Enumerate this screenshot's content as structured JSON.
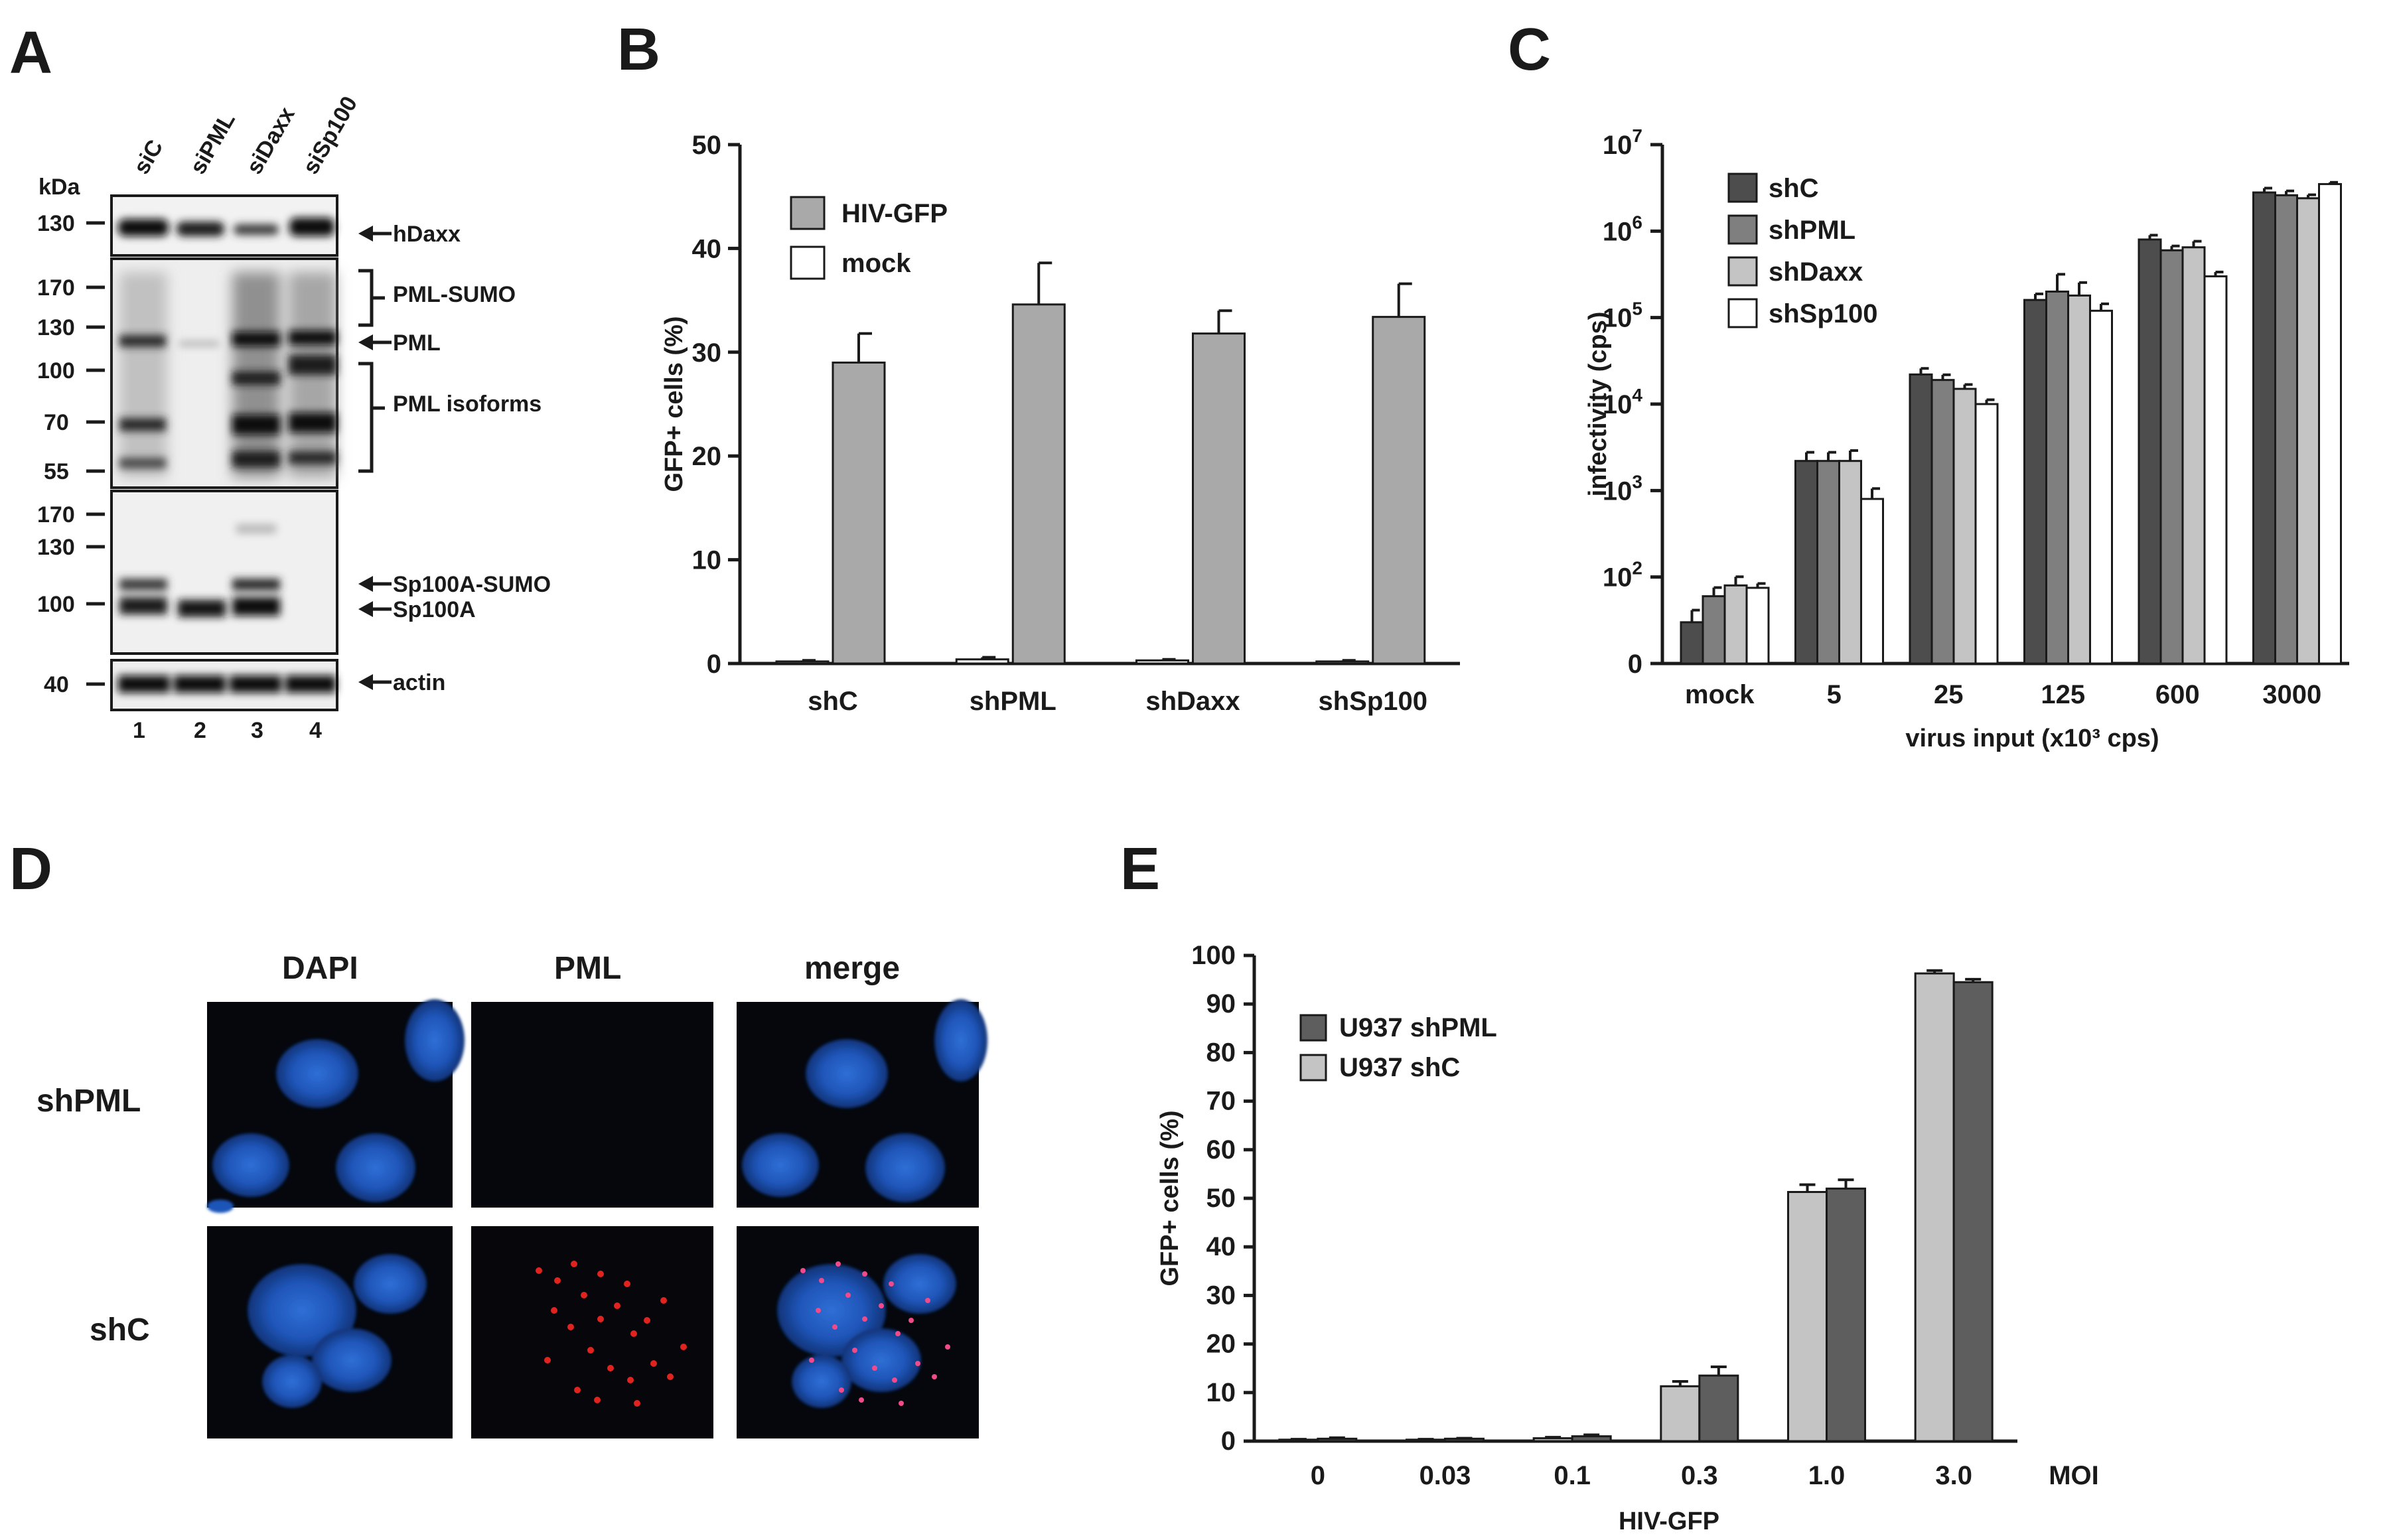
{
  "panels": {
    "A": {
      "letter": "A",
      "kda_label": "kDa",
      "lanes": [
        "siC",
        "siPML",
        "siDaxx",
        "siSp100"
      ],
      "lane_numbers": [
        "1",
        "2",
        "3",
        "4"
      ],
      "marker_labels": [
        "130",
        "170",
        "130",
        "100",
        "70",
        "55",
        "170",
        "130",
        "100",
        "40"
      ],
      "band_labels": [
        "hDaxx",
        "PML-SUMO",
        "PML",
        "PML isoforms",
        "Sp100A-SUMO",
        "Sp100A",
        "actin"
      ]
    },
    "B": {
      "letter": "B"
    },
    "C": {
      "letter": "C"
    },
    "D": {
      "letter": "D",
      "columns": [
        "DAPI",
        "PML",
        "merge"
      ],
      "rows": [
        "shPML",
        "shC"
      ]
    },
    "E": {
      "letter": "E"
    }
  },
  "chart_data": [
    {
      "panel": "B",
      "type": "bar",
      "categories": [
        "shC",
        "shPML",
        "shDaxx",
        "shSp100"
      ],
      "series": [
        {
          "name": "HIV-GFP",
          "values": [
            29.0,
            34.6,
            31.8,
            33.4
          ],
          "errors": [
            2.8,
            4.0,
            2.2,
            3.2
          ],
          "color": "#a9a9a9"
        },
        {
          "name": "mock",
          "values": [
            0.2,
            0.4,
            0.3,
            0.2
          ],
          "errors": [
            0.1,
            0.2,
            0.1,
            0.1
          ],
          "color": "#ffffff"
        }
      ],
      "draw_order": [
        "mock",
        "HIV-GFP"
      ],
      "ylabel": "GFP+ cells (%)",
      "yticks": [
        "0",
        "10",
        "20",
        "30",
        "40",
        "50"
      ],
      "ylim": [
        0,
        50
      ],
      "legend": "top-left"
    },
    {
      "panel": "C",
      "type": "bar",
      "scale": "log",
      "categories": [
        "mock",
        "5",
        "25",
        "125",
        "600",
        "3000"
      ],
      "series": [
        {
          "name": "shC",
          "values": [
            30,
            2200,
            22000,
            160000,
            800000,
            2800000
          ],
          "errors_log": [
            0.14,
            0.1,
            0.07,
            0.07,
            0.05,
            0.05
          ],
          "color": "#4d4d4d"
        },
        {
          "name": "shPML",
          "values": [
            60,
            2200,
            19000,
            200000,
            600000,
            2600000
          ],
          "errors_log": [
            0.1,
            0.1,
            0.06,
            0.2,
            0.05,
            0.05
          ],
          "color": "#7f7f7f"
        },
        {
          "name": "shDaxx",
          "values": [
            80,
            2200,
            15000,
            180000,
            650000,
            2400000
          ],
          "errors_log": [
            0.1,
            0.12,
            0.05,
            0.15,
            0.07,
            0.04
          ],
          "color": "#c4c4c4"
        },
        {
          "name": "shSp100",
          "values": [
            75,
            800,
            10000,
            120000,
            300000,
            3500000
          ],
          "errors_log": [
            0.05,
            0.12,
            0.05,
            0.08,
            0.05,
            0.02
          ],
          "color": "#ffffff"
        }
      ],
      "ylabel": "infectivity (cps)",
      "xlabel": "virus input (x10³ cps)",
      "ytick_labels": [
        {
          "base": "0",
          "exp": ""
        },
        {
          "base": "10",
          "exp": "2"
        },
        {
          "base": "10",
          "exp": "3"
        },
        {
          "base": "10",
          "exp": "4"
        },
        {
          "base": "10",
          "exp": "5"
        },
        {
          "base": "10",
          "exp": "6"
        },
        {
          "base": "10",
          "exp": "7"
        }
      ],
      "ylim": [
        10,
        10000000
      ],
      "legend": "top-left"
    },
    {
      "panel": "E",
      "type": "bar",
      "categories": [
        "0",
        "0.03",
        "0.1",
        "0.3",
        "1.0",
        "3.0"
      ],
      "x_suffix": "MOI",
      "series": [
        {
          "name": "U937 shC",
          "values": [
            0.3,
            0.3,
            0.6,
            11.3,
            51.3,
            96.3
          ],
          "errors": [
            0.1,
            0.1,
            0.2,
            1.0,
            1.5,
            0.6
          ],
          "color": "#c4c4c4"
        },
        {
          "name": "U937 shPML",
          "values": [
            0.5,
            0.5,
            1.0,
            13.5,
            52.0,
            94.5
          ],
          "errors": [
            0.2,
            0.1,
            0.3,
            1.8,
            1.8,
            0.6
          ],
          "color": "#5e5e5e"
        }
      ],
      "legend_order": [
        "U937 shPML",
        "U937 shC"
      ],
      "ylabel": "GFP+ cells (%)",
      "xlabel": "HIV-GFP",
      "yticks": [
        "0",
        "10",
        "20",
        "30",
        "40",
        "50",
        "60",
        "70",
        "80",
        "90",
        "100"
      ],
      "ylim": [
        0,
        100
      ],
      "legend": "top-left"
    }
  ]
}
